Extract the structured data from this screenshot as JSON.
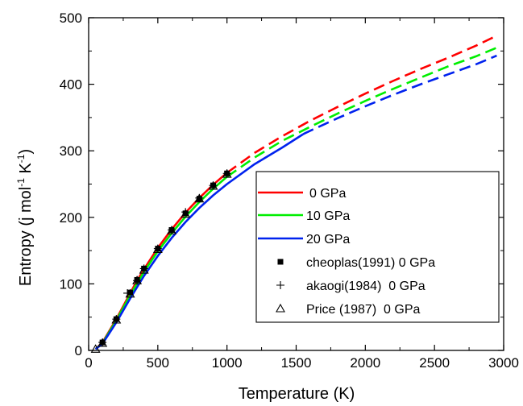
{
  "chart_data": {
    "type": "line",
    "xlabel": "Temperature (K)",
    "ylabel": {
      "main": "Entropy (j mol",
      "sup1": "-1",
      "mid": " K",
      "sup2": "-1",
      "end": ")"
    },
    "xlim": [
      0,
      3000
    ],
    "ylim": [
      0,
      500
    ],
    "xticks": [
      0,
      500,
      1000,
      1500,
      2000,
      2500,
      3000
    ],
    "yticks": [
      0,
      100,
      200,
      300,
      400,
      500
    ],
    "grid": false,
    "legend_position": "lower-right",
    "series": [
      {
        "name": "0 GPa",
        "color": "#ff0000",
        "solid_end_x": 1000,
        "points": [
          [
            50,
            2
          ],
          [
            100,
            12
          ],
          [
            200,
            47
          ],
          [
            300,
            86
          ],
          [
            350,
            105
          ],
          [
            400,
            122
          ],
          [
            500,
            154
          ],
          [
            600,
            182
          ],
          [
            700,
            207
          ],
          [
            800,
            229
          ],
          [
            900,
            249
          ],
          [
            1000,
            267
          ],
          [
            1200,
            297
          ],
          [
            1400,
            322
          ],
          [
            1600,
            345
          ],
          [
            1800,
            366
          ],
          [
            2000,
            386
          ],
          [
            2200,
            405
          ],
          [
            2400,
            423
          ],
          [
            2600,
            440
          ],
          [
            2800,
            458
          ],
          [
            2950,
            473
          ]
        ]
      },
      {
        "name": "10 GPa",
        "color": "#00ee00",
        "solid_end_x": 1000,
        "points": [
          [
            50,
            2
          ],
          [
            100,
            11
          ],
          [
            200,
            45
          ],
          [
            300,
            83
          ],
          [
            350,
            101
          ],
          [
            400,
            118
          ],
          [
            500,
            149
          ],
          [
            600,
            176
          ],
          [
            700,
            201
          ],
          [
            800,
            223
          ],
          [
            900,
            243
          ],
          [
            1000,
            261
          ],
          [
            1200,
            290
          ],
          [
            1400,
            315
          ],
          [
            1600,
            336
          ],
          [
            1800,
            356
          ],
          [
            2000,
            375
          ],
          [
            2200,
            393
          ],
          [
            2400,
            410
          ],
          [
            2600,
            427
          ],
          [
            2800,
            442
          ],
          [
            2950,
            455
          ]
        ]
      },
      {
        "name": "20 GPa",
        "color": "#0022ee",
        "solid_end_x": 1550,
        "points": [
          [
            50,
            2
          ],
          [
            100,
            10
          ],
          [
            200,
            42
          ],
          [
            300,
            78
          ],
          [
            350,
            95
          ],
          [
            400,
            112
          ],
          [
            500,
            142
          ],
          [
            600,
            169
          ],
          [
            700,
            193
          ],
          [
            800,
            214
          ],
          [
            900,
            233
          ],
          [
            1000,
            250
          ],
          [
            1200,
            280
          ],
          [
            1400,
            305
          ],
          [
            1550,
            325
          ],
          [
            1600,
            330
          ],
          [
            1800,
            349
          ],
          [
            2000,
            367
          ],
          [
            2200,
            384
          ],
          [
            2400,
            400
          ],
          [
            2600,
            415
          ],
          [
            2800,
            430
          ],
          [
            2950,
            443
          ]
        ]
      }
    ],
    "markers": [
      {
        "name": "cheoplas(1991) 0 GPa",
        "symbol": "square",
        "points": [
          [
            100,
            12
          ],
          [
            200,
            47
          ],
          [
            300,
            87
          ],
          [
            350,
            106
          ],
          [
            400,
            123
          ],
          [
            500,
            153
          ],
          [
            600,
            181
          ],
          [
            700,
            206
          ],
          [
            800,
            228
          ],
          [
            900,
            248
          ],
          [
            1000,
            266
          ]
        ]
      },
      {
        "name": "akaogi(1984)  0 GPa",
        "symbol": "plus",
        "points": [
          [
            100,
            12
          ],
          [
            200,
            47
          ],
          [
            280,
            86
          ],
          [
            350,
            105
          ],
          [
            400,
            123
          ],
          [
            500,
            153
          ],
          [
            600,
            181
          ],
          [
            700,
            208
          ],
          [
            800,
            229
          ],
          [
            900,
            248
          ],
          [
            1000,
            266
          ]
        ]
      },
      {
        "name": "Price (1987)  0 GPa",
        "symbol": "triangle",
        "points": [
          [
            50,
            2
          ],
          [
            100,
            11
          ],
          [
            200,
            46
          ],
          [
            300,
            85
          ],
          [
            350,
            105
          ],
          [
            400,
            121
          ],
          [
            500,
            152
          ],
          [
            600,
            180
          ],
          [
            700,
            205
          ],
          [
            800,
            228
          ],
          [
            900,
            247
          ],
          [
            1000,
            265
          ]
        ]
      }
    ]
  }
}
